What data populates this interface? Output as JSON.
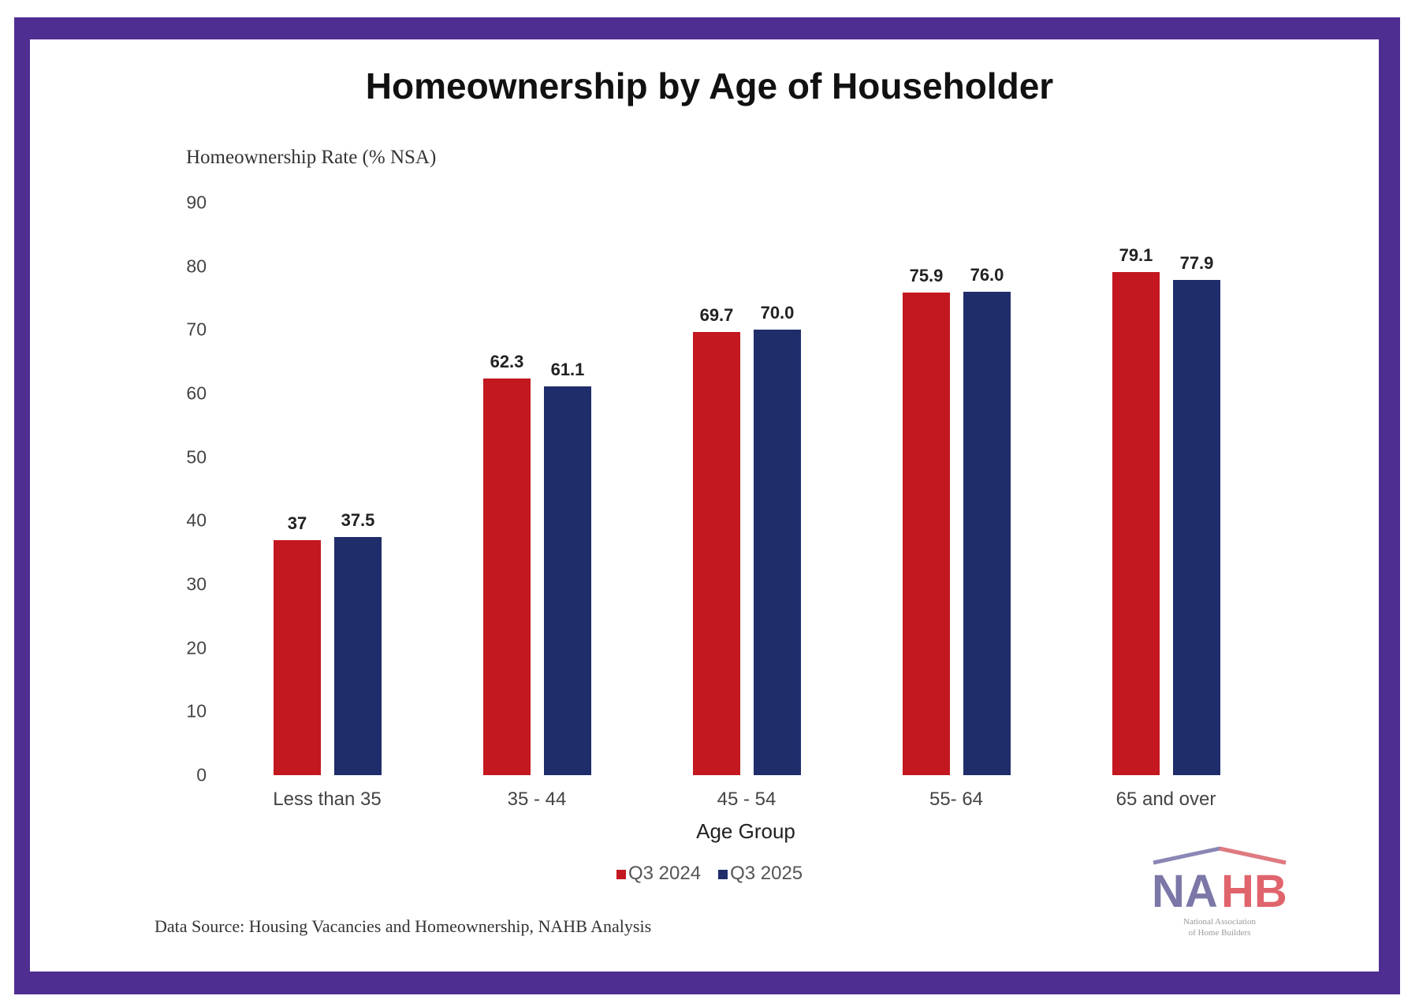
{
  "colors": {
    "frame": "#4f2e91",
    "q3_2024": "#c3181f",
    "q3_2025": "#1f2d6b"
  },
  "chart_data": {
    "type": "bar",
    "title": "Homeownership by Age of Householder",
    "ylabel": "Homeownership Rate (% NSA)",
    "xlabel": "Age Group",
    "ylim": [
      0,
      90
    ],
    "yticks": [
      "0",
      "10",
      "20",
      "30",
      "40",
      "50",
      "60",
      "70",
      "80",
      "90"
    ],
    "categories": [
      "Less than 35",
      "35 - 44",
      "45 - 54",
      "55- 64",
      "65 and over"
    ],
    "series": [
      {
        "name": "Q3 2024",
        "values": [
          37,
          62.3,
          69.7,
          75.9,
          79.1
        ],
        "labels": [
          "37",
          "62.3",
          "69.7",
          "75.9",
          "79.1"
        ]
      },
      {
        "name": "Q3 2025",
        "values": [
          37.5,
          61.1,
          70.0,
          76.0,
          77.9
        ],
        "labels": [
          "37.5",
          "61.1",
          "70.0",
          "76.0",
          "77.9"
        ]
      }
    ],
    "legend": "bottom-center",
    "grid": false
  },
  "source": "Data Source: Housing Vacancies and Homeownership, NAHB Analysis",
  "logo": {
    "text": "NAHB",
    "subtext": "National Association of Home Builders"
  }
}
